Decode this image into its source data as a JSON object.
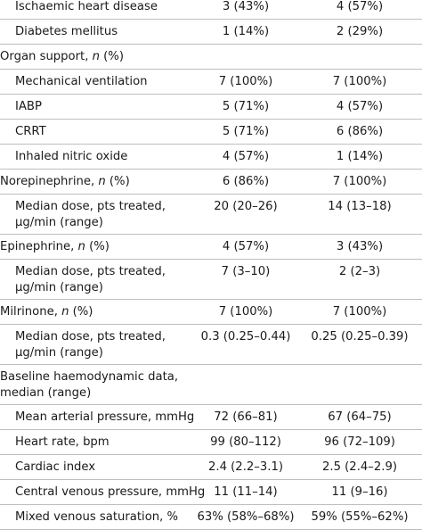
{
  "rows": [
    {
      "label": "Ischaemic heart disease",
      "indent": true,
      "c1": "3 (43%)",
      "c2": "4 (57%)"
    },
    {
      "label": "Diabetes mellitus",
      "indent": true,
      "c1": "1 (14%)",
      "c2": "2 (29%)"
    },
    {
      "label": "Organ support, n (%)",
      "indent": false,
      "c1": "",
      "c2": ""
    },
    {
      "label": "Mechanical ventilation",
      "indent": true,
      "c1": "7 (100%)",
      "c2": "7 (100%)"
    },
    {
      "label": "IABP",
      "indent": true,
      "c1": "5 (71%)",
      "c2": "4 (57%)"
    },
    {
      "label": "CRRT",
      "indent": true,
      "c1": "5 (71%)",
      "c2": "6 (86%)"
    },
    {
      "label": "Inhaled nitric oxide",
      "indent": true,
      "c1": "4 (57%)",
      "c2": "1 (14%)"
    },
    {
      "label": "Norepinephrine, n (%)",
      "indent": false,
      "c1": "6 (86%)",
      "c2": "7 (100%)"
    },
    {
      "label": "Median dose, pts treated,",
      "label2": "µg/min (range)",
      "indent": true,
      "c1": "20 (20–26)",
      "c2": "14 (13–18)"
    },
    {
      "label": "Epinephrine, n (%)",
      "indent": false,
      "c1": "4 (57%)",
      "c2": "3 (43%)"
    },
    {
      "label": "Median dose, pts treated,",
      "label2": "µg/min (range)",
      "indent": true,
      "c1": "7 (3–10)",
      "c2": "2 (2–3)"
    },
    {
      "label": "Milrinone, n (%)",
      "indent": false,
      "c1": "7 (100%)",
      "c2": "7 (100%)"
    },
    {
      "label": "Median dose, pts treated,",
      "label2": "µg/min (range)",
      "indent": true,
      "c1": "0.3 (0.25–0.44)",
      "c2": "0.25 (0.25–0.39)"
    },
    {
      "label": "Baseline haemodynamic data,",
      "label2": "median (range)",
      "indent": false,
      "c1": "",
      "c2": ""
    },
    {
      "label": "Mean arterial pressure, mmHg",
      "indent": true,
      "c1": "72 (66–81)",
      "c2": "67 (64–75)"
    },
    {
      "label": "Heart rate, bpm",
      "indent": true,
      "c1": "99 (80–112)",
      "c2": "96 (72–109)"
    },
    {
      "label": "Cardiac index",
      "indent": true,
      "c1": "2.4 (2.2–3.1)",
      "c2": "2.5 (2.4–2.9)"
    },
    {
      "label": "Central venous pressure, mmHg",
      "indent": true,
      "c1": "11 (11–14)",
      "c2": "11 (9–16)"
    },
    {
      "label": "Mixed venous saturation, %",
      "indent": true,
      "c1": "63% (58%–68%)",
      "c2": "59% (55%–62%)"
    }
  ]
}
